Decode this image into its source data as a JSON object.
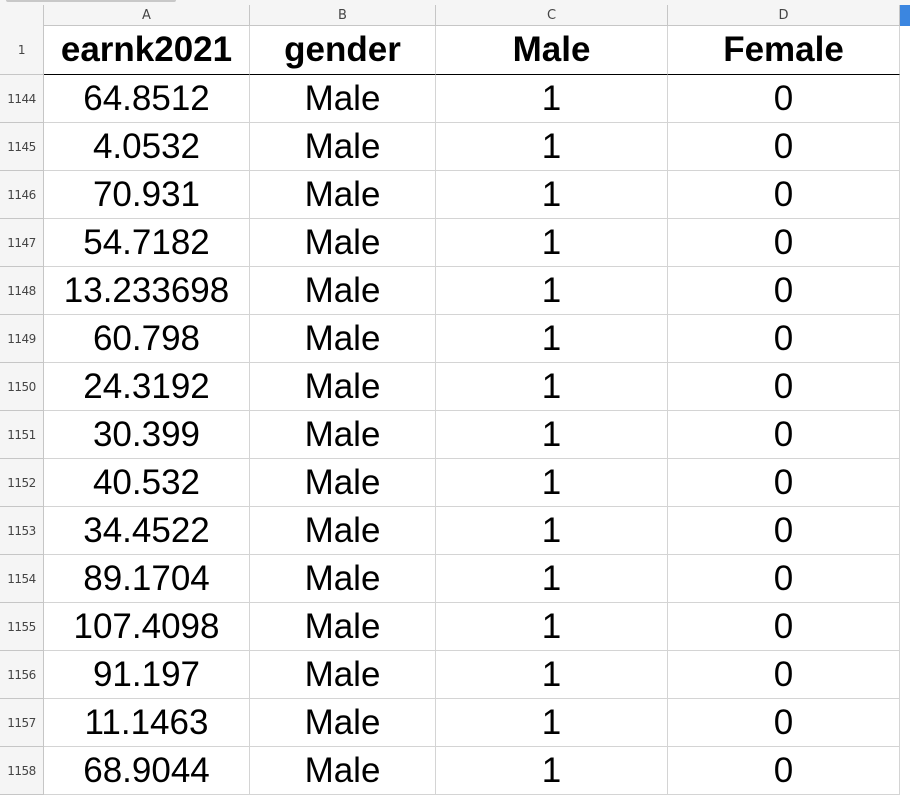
{
  "columns": [
    {
      "letter": "A"
    },
    {
      "letter": "B"
    },
    {
      "letter": "C"
    },
    {
      "letter": "D"
    }
  ],
  "header_row": {
    "number": "1",
    "cells": [
      "earnk2021",
      "gender",
      "Male",
      "Female"
    ]
  },
  "rows": [
    {
      "number": "1144",
      "cells": [
        "64.8512",
        "Male",
        "1",
        "0"
      ]
    },
    {
      "number": "1145",
      "cells": [
        "4.0532",
        "Male",
        "1",
        "0"
      ]
    },
    {
      "number": "1146",
      "cells": [
        "70.931",
        "Male",
        "1",
        "0"
      ]
    },
    {
      "number": "1147",
      "cells": [
        "54.7182",
        "Male",
        "1",
        "0"
      ]
    },
    {
      "number": "1148",
      "cells": [
        "13.233698",
        "Male",
        "1",
        "0"
      ]
    },
    {
      "number": "1149",
      "cells": [
        "60.798",
        "Male",
        "1",
        "0"
      ]
    },
    {
      "number": "1150",
      "cells": [
        "24.3192",
        "Male",
        "1",
        "0"
      ]
    },
    {
      "number": "1151",
      "cells": [
        "30.399",
        "Male",
        "1",
        "0"
      ]
    },
    {
      "number": "1152",
      "cells": [
        "40.532",
        "Male",
        "1",
        "0"
      ]
    },
    {
      "number": "1153",
      "cells": [
        "34.4522",
        "Male",
        "1",
        "0"
      ]
    },
    {
      "number": "1154",
      "cells": [
        "89.1704",
        "Male",
        "1",
        "0"
      ]
    },
    {
      "number": "1155",
      "cells": [
        "107.4098",
        "Male",
        "1",
        "0"
      ]
    },
    {
      "number": "1156",
      "cells": [
        "91.197",
        "Male",
        "1",
        "0"
      ]
    },
    {
      "number": "1157",
      "cells": [
        "11.1463",
        "Male",
        "1",
        "0"
      ]
    },
    {
      "number": "1158",
      "cells": [
        "68.9044",
        "Male",
        "1",
        "0"
      ]
    }
  ],
  "colors": {
    "header_bg": "#f5f5f5",
    "grid_line": "#d4d4d4",
    "scroll_marker": "#3b86e0"
  }
}
